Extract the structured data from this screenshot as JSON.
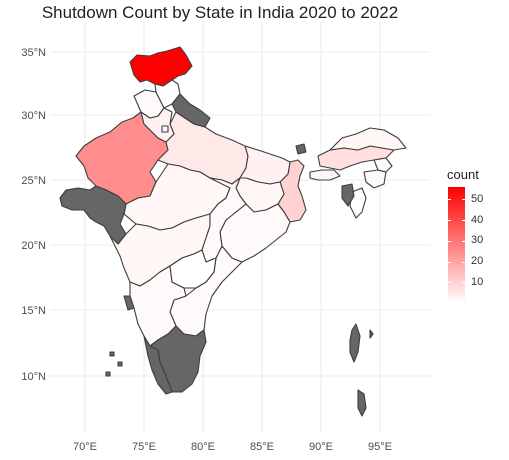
{
  "chart_data": {
    "type": "choropleth",
    "title": "Shutdown Count by State in India 2020 to 2022",
    "region": "India",
    "x_ticks": [
      "70°E",
      "75°E",
      "80°E",
      "85°E",
      "90°E",
      "95°E"
    ],
    "y_ticks": [
      "10°N",
      "15°N",
      "20°N",
      "25°N",
      "30°N",
      "35°N"
    ],
    "legend": {
      "title": "count",
      "ticks": [
        "10",
        "20",
        "30",
        "40",
        "50"
      ],
      "tick_values": [
        10,
        20,
        30,
        40,
        50
      ],
      "min": 0,
      "max": 56,
      "color_low": "#ffffff",
      "color_high": "#ff0000"
    },
    "na_color": "#666666",
    "border_color": "#3d3d3d",
    "grid": true,
    "states": [
      {
        "name": "Jammu and Kashmir",
        "count": 56
      },
      {
        "name": "Rajasthan",
        "count": 25
      },
      {
        "name": "West Bengal",
        "count": 10
      },
      {
        "name": "Uttar Pradesh",
        "count": 5
      },
      {
        "name": "Assam",
        "count": 7
      },
      {
        "name": "Bihar",
        "count": 3
      },
      {
        "name": "Haryana",
        "count": 3
      },
      {
        "name": "Madhya Pradesh",
        "count": 2
      },
      {
        "name": "Maharashtra",
        "count": 2
      },
      {
        "name": "Arunachal Pradesh",
        "count": 2
      },
      {
        "name": "Punjab",
        "count": 1
      },
      {
        "name": "Jharkhand",
        "count": 2
      },
      {
        "name": "Andhra Pradesh",
        "count": 1
      },
      {
        "name": "Odisha",
        "count": 1
      },
      {
        "name": "Karnataka",
        "count": 1
      },
      {
        "name": "Chhattisgarh",
        "count": 1
      },
      {
        "name": "Meghalaya",
        "count": 2
      },
      {
        "name": "Manipur",
        "count": 1
      },
      {
        "name": "Himachal Pradesh",
        "count": 0
      },
      {
        "name": "Delhi",
        "count": 1
      },
      {
        "name": "Telangana",
        "count": 0
      },
      {
        "name": "Nagaland",
        "count": 1
      },
      {
        "name": "Mizoram",
        "count": 0
      },
      {
        "name": "Gujarat",
        "count": null
      },
      {
        "name": "Uttarakhand",
        "count": null
      },
      {
        "name": "Goa",
        "count": null
      },
      {
        "name": "Kerala",
        "count": null
      },
      {
        "name": "Tamil Nadu",
        "count": null
      },
      {
        "name": "Sikkim",
        "count": null
      },
      {
        "name": "Tripura",
        "count": null
      },
      {
        "name": "Andaman and Nicobar Islands",
        "count": null
      },
      {
        "name": "Lakshadweep",
        "count": null
      }
    ]
  }
}
